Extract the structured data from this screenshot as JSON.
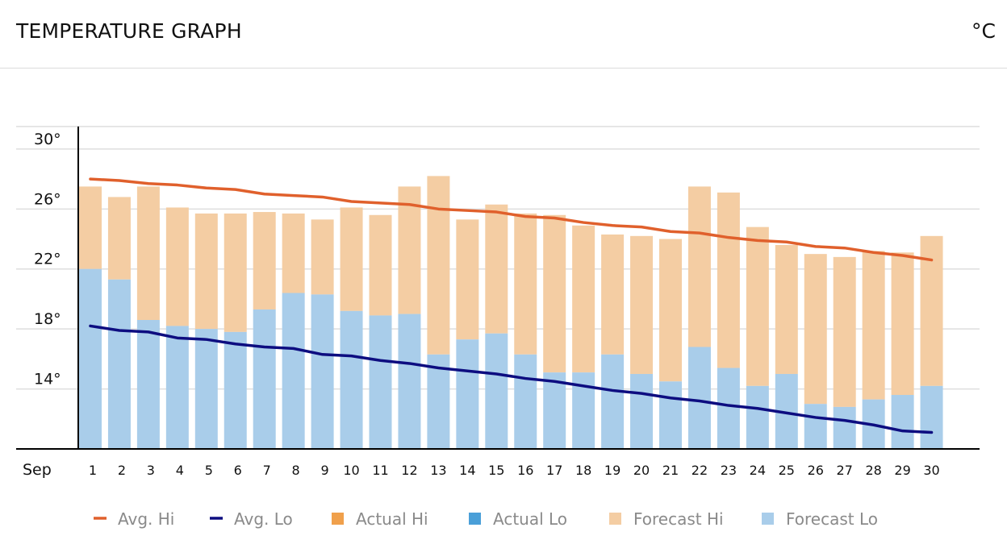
{
  "header": {
    "title": "TEMPERATURE GRAPH",
    "unit": "°C"
  },
  "chart_data": {
    "type": "bar",
    "x_label_prefix": "Sep",
    "categories": [
      "1",
      "2",
      "3",
      "4",
      "5",
      "6",
      "7",
      "8",
      "9",
      "10",
      "11",
      "12",
      "13",
      "14",
      "15",
      "16",
      "17",
      "18",
      "19",
      "20",
      "21",
      "22",
      "23",
      "24",
      "25",
      "26",
      "27",
      "28",
      "29",
      "30"
    ],
    "ylim": [
      10,
      31.5
    ],
    "y_ticks": [
      14,
      18,
      22,
      26,
      30
    ],
    "y_tick_labels": [
      "14°",
      "18°",
      "22°",
      "26°",
      "30°"
    ],
    "grid": true,
    "legend_position": "bottom",
    "colors": {
      "avg_hi": "#e0602c",
      "avg_lo": "#0d0d80",
      "actual_hi": "#f0a04b",
      "actual_lo": "#4a9fd8",
      "forecast_hi": "#f4cda3",
      "forecast_lo": "#a9cdea"
    },
    "series": [
      {
        "name": "Forecast Hi",
        "type": "bar",
        "values": [
          27.5,
          26.8,
          27.5,
          26.1,
          25.7,
          25.7,
          25.8,
          25.7,
          25.3,
          26.1,
          25.6,
          27.5,
          28.2,
          25.3,
          26.3,
          25.7,
          25.6,
          24.9,
          24.3,
          24.2,
          24.0,
          27.5,
          27.1,
          24.8,
          23.6,
          23.0,
          22.8,
          23.2,
          23.1,
          24.2
        ]
      },
      {
        "name": "Forecast Lo",
        "type": "bar",
        "values": [
          22.0,
          21.3,
          18.6,
          18.2,
          18.0,
          17.8,
          19.3,
          20.4,
          20.3,
          19.2,
          18.9,
          19.0,
          16.3,
          17.3,
          17.7,
          16.3,
          15.1,
          15.1,
          16.3,
          15.0,
          14.5,
          16.8,
          15.4,
          14.2,
          15.0,
          13.0,
          12.8,
          13.3,
          13.6,
          14.2
        ]
      },
      {
        "name": "Avg. Hi",
        "type": "line",
        "values": [
          28.0,
          27.9,
          27.7,
          27.6,
          27.4,
          27.3,
          27.0,
          26.9,
          26.8,
          26.5,
          26.4,
          26.3,
          26.0,
          25.9,
          25.8,
          25.5,
          25.4,
          25.1,
          24.9,
          24.8,
          24.5,
          24.4,
          24.1,
          23.9,
          23.8,
          23.5,
          23.4,
          23.1,
          22.9,
          22.6
        ]
      },
      {
        "name": "Avg. Lo",
        "type": "line",
        "values": [
          18.2,
          17.9,
          17.8,
          17.4,
          17.3,
          17.0,
          16.8,
          16.7,
          16.3,
          16.2,
          15.9,
          15.7,
          15.4,
          15.2,
          15.0,
          14.7,
          14.5,
          14.2,
          13.9,
          13.7,
          13.4,
          13.2,
          12.9,
          12.7,
          12.4,
          12.1,
          11.9,
          11.6,
          11.2,
          11.1
        ]
      }
    ],
    "legend": [
      "Avg. Hi",
      "Avg. Lo",
      "Actual Hi",
      "Actual Lo",
      "Forecast Hi",
      "Forecast Lo"
    ]
  }
}
